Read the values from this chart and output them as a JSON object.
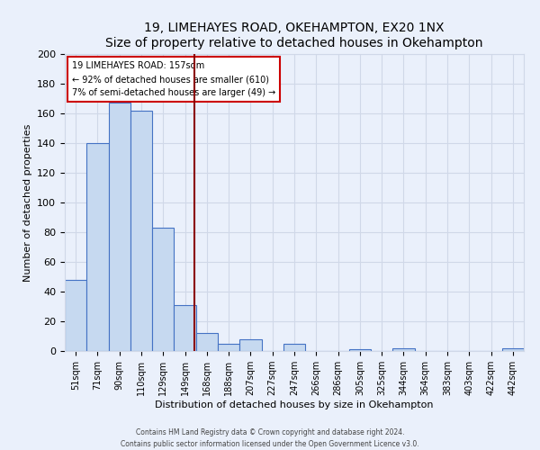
{
  "title": "19, LIMEHAYES ROAD, OKEHAMPTON, EX20 1NX",
  "subtitle": "Size of property relative to detached houses in Okehampton",
  "xlabel": "Distribution of detached houses by size in Okehampton",
  "ylabel": "Number of detached properties",
  "bin_labels": [
    "51sqm",
    "71sqm",
    "90sqm",
    "110sqm",
    "129sqm",
    "149sqm",
    "168sqm",
    "188sqm",
    "207sqm",
    "227sqm",
    "247sqm",
    "266sqm",
    "286sqm",
    "305sqm",
    "325sqm",
    "344sqm",
    "364sqm",
    "383sqm",
    "403sqm",
    "422sqm",
    "442sqm"
  ],
  "bar_heights": [
    48,
    140,
    167,
    162,
    83,
    31,
    12,
    5,
    8,
    0,
    5,
    0,
    0,
    1,
    0,
    2,
    0,
    0,
    0,
    0,
    2
  ],
  "bar_color": "#c6d9f0",
  "bar_edge_color": "#4472c4",
  "grid_color": "#d0d8e8",
  "background_color": "#eaf0fb",
  "property_line_color": "#8b0000",
  "annotation_text_line1": "19 LIMEHAYES ROAD: 157sqm",
  "annotation_text_line2": "← 92% of detached houses are smaller (610)",
  "annotation_text_line3": "7% of semi-detached houses are larger (49) →",
  "annotation_box_color": "#ffffff",
  "annotation_box_edge": "#cc0000",
  "ylim": [
    0,
    200
  ],
  "yticks": [
    0,
    20,
    40,
    60,
    80,
    100,
    120,
    140,
    160,
    180,
    200
  ],
  "footer_line1": "Contains HM Land Registry data © Crown copyright and database right 2024.",
  "footer_line2": "Contains public sector information licensed under the Open Government Licence v3.0."
}
